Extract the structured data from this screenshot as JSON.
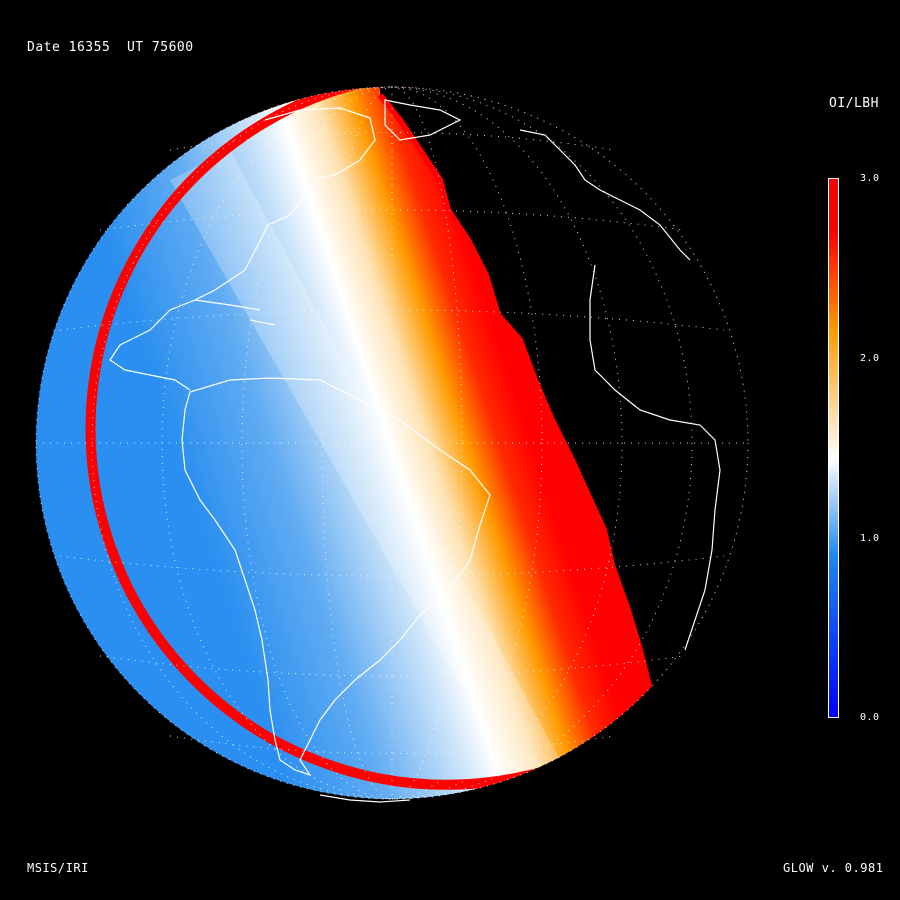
{
  "header": {
    "date_label": "Date",
    "date_value": "16355",
    "ut_label": "UT",
    "ut_value": "75600"
  },
  "colorbar": {
    "title": "OI/LBH",
    "ticks": [
      "3.0",
      "2.0",
      "1.0",
      "0.0"
    ],
    "range": [
      0.0,
      3.0
    ],
    "colors": {
      "low": "#0000ff",
      "mid_low": "#1e88f0",
      "mid": "#ffffff",
      "mid_high": "#ff9900",
      "high": "#ff0000"
    }
  },
  "footer": {
    "model": "MSIS/IRI",
    "version": "GLOW v. 0.981"
  },
  "map": {
    "projection": "orthographic",
    "features": [
      "coastlines",
      "graticule"
    ],
    "colors": {
      "background": "#000000",
      "coastline": "#ffffff",
      "graticule": "#ffffff"
    }
  }
}
